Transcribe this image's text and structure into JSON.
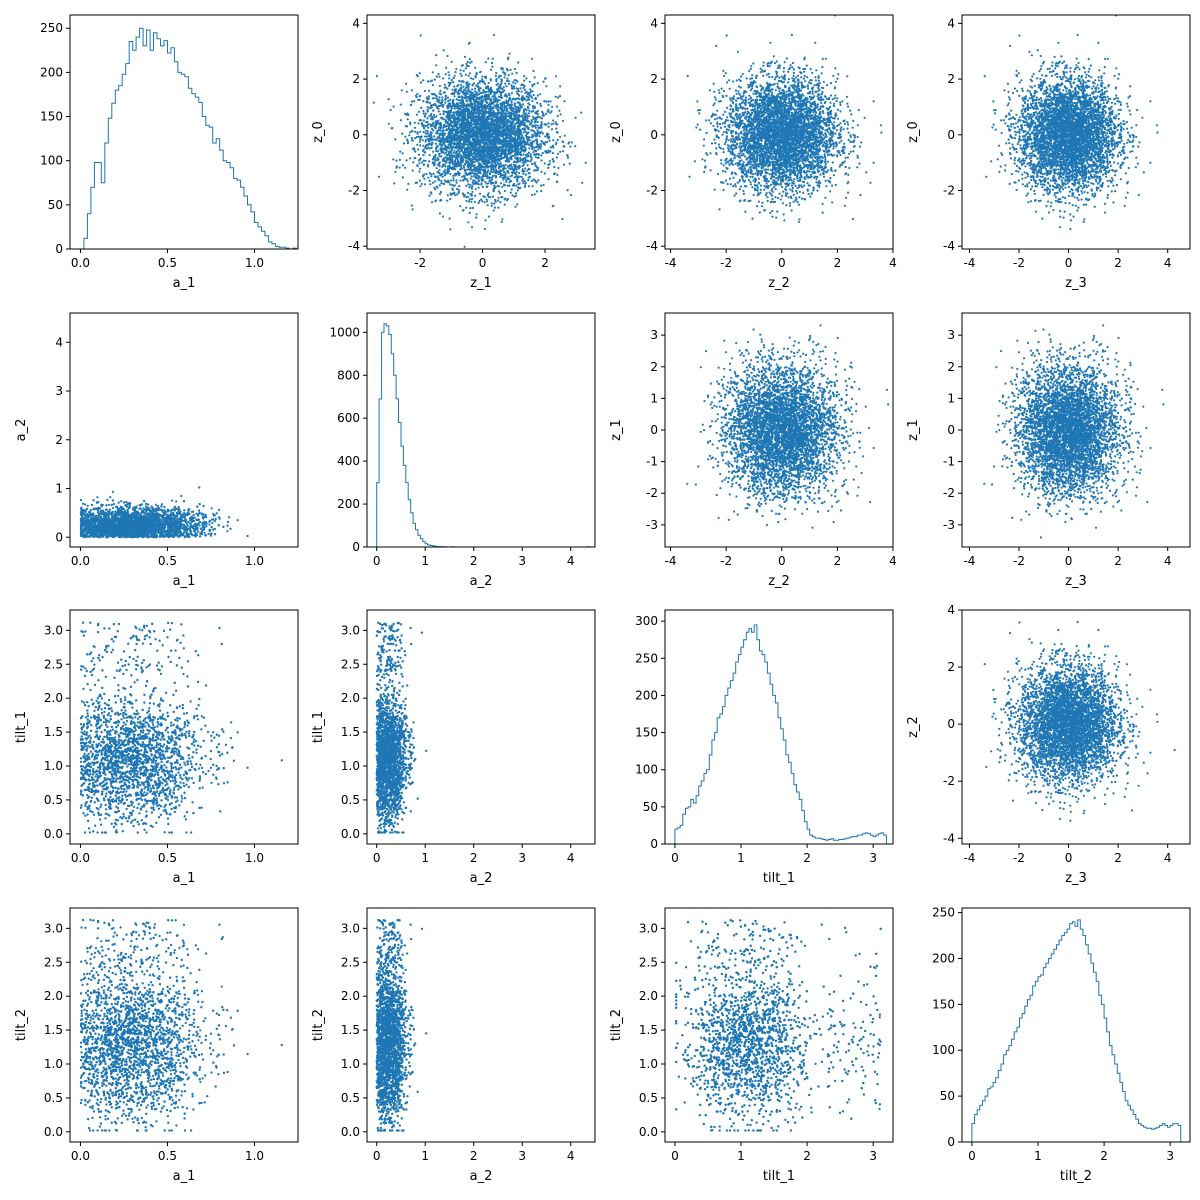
{
  "colors": {
    "series": "#1f77b4",
    "axis": "#000000",
    "background": "#ffffff"
  },
  "chart_data": [
    {
      "type": "histogram",
      "row": 0,
      "col": 0,
      "xlabel": "a_1",
      "ylabel": "",
      "xlim": [
        -0.06,
        1.25
      ],
      "ylim": [
        0,
        265
      ],
      "xticks": [
        0.0,
        0.5,
        1.0
      ],
      "yticks": [
        0,
        50,
        100,
        150,
        200,
        250
      ],
      "bins": {
        "start": 0.0,
        "width": 0.02,
        "counts": [
          0,
          12,
          40,
          70,
          98,
          98,
          75,
          120,
          148,
          165,
          180,
          185,
          198,
          210,
          235,
          225,
          240,
          250,
          230,
          248,
          225,
          245,
          238,
          230,
          236,
          222,
          228,
          212,
          200,
          198,
          195,
          182,
          176,
          172,
          166,
          150,
          140,
          138,
          120,
          125,
          112,
          100,
          98,
          92,
          80,
          78,
          70,
          60,
          50,
          42,
          30,
          25,
          20,
          15,
          8,
          6,
          3,
          2,
          2,
          1,
          0,
          1
        ]
      }
    },
    {
      "type": "scatter",
      "row": 0,
      "col": 1,
      "xlabel": "z_1",
      "ylabel": "z_0",
      "xlim": [
        -3.7,
        3.6
      ],
      "ylim": [
        -4.1,
        4.3
      ],
      "xticks": [
        -2,
        0,
        2
      ],
      "yticks": [
        -4,
        -2,
        0,
        2,
        4
      ],
      "cloud": {
        "cx": 0,
        "cy": 0,
        "sx": 1,
        "sy": 1,
        "n": 4500
      }
    },
    {
      "type": "scatter",
      "row": 0,
      "col": 2,
      "xlabel": "z_2",
      "ylabel": "z_0",
      "xlim": [
        -4.2,
        4.0
      ],
      "ylim": [
        -4.1,
        4.3
      ],
      "xticks": [
        -4,
        -2,
        0,
        2,
        4
      ],
      "yticks": [
        -4,
        -2,
        0,
        2,
        4
      ],
      "cloud": {
        "cx": 0,
        "cy": 0,
        "sx": 1,
        "sy": 1,
        "n": 4500
      }
    },
    {
      "type": "scatter",
      "row": 0,
      "col": 3,
      "xlabel": "z_3",
      "ylabel": "z_0",
      "xlim": [
        -4.3,
        4.9
      ],
      "ylim": [
        -4.1,
        4.3
      ],
      "xticks": [
        -4,
        -2,
        0,
        2,
        4
      ],
      "yticks": [
        -4,
        -2,
        0,
        2,
        4
      ],
      "cloud": {
        "cx": 0,
        "cy": 0,
        "sx": 1,
        "sy": 1,
        "n": 4500
      }
    },
    {
      "type": "scatter",
      "row": 1,
      "col": 0,
      "xlabel": "a_1",
      "ylabel": "a_2",
      "xlim": [
        -0.06,
        1.25
      ],
      "ylim": [
        -0.2,
        4.6
      ],
      "xticks": [
        0.0,
        0.5,
        1.0
      ],
      "yticks": [
        0,
        1,
        2,
        3,
        4
      ],
      "cloud": {
        "kind": "a1a2",
        "n": 4500
      }
    },
    {
      "type": "histogram",
      "row": 1,
      "col": 1,
      "xlabel": "a_2",
      "ylabel": "",
      "xlim": [
        -0.2,
        4.5
      ],
      "ylim": [
        0,
        1090
      ],
      "xticks": [
        0,
        1,
        2,
        3,
        4
      ],
      "yticks": [
        0,
        200,
        400,
        600,
        800,
        1000
      ],
      "bins": {
        "start": 0.0,
        "width": 0.05,
        "counts": [
          300,
          690,
          1000,
          1040,
          1030,
          990,
          900,
          800,
          690,
          580,
          470,
          380,
          300,
          220,
          160,
          110,
          80,
          55,
          38,
          25,
          15,
          10,
          7,
          5,
          3,
          2,
          2,
          1,
          1,
          0,
          0,
          1,
          0,
          0,
          0,
          0,
          0,
          0,
          0,
          0,
          0,
          0,
          0,
          0,
          0,
          0,
          0,
          0,
          0,
          0,
          0,
          0,
          0,
          0,
          0,
          0,
          0,
          0,
          0,
          0,
          0,
          0,
          0,
          0,
          0,
          0,
          0,
          0,
          0,
          0,
          0,
          0,
          0,
          0,
          0,
          0,
          0,
          0,
          0,
          0,
          0,
          0,
          0,
          0,
          0,
          0,
          0,
          1
        ]
      }
    },
    {
      "type": "scatter",
      "row": 1,
      "col": 2,
      "xlabel": "z_2",
      "ylabel": "z_1",
      "xlim": [
        -4.2,
        4.0
      ],
      "ylim": [
        -3.7,
        3.7
      ],
      "xticks": [
        -4,
        -2,
        0,
        2,
        4
      ],
      "yticks": [
        -3,
        -2,
        -1,
        0,
        1,
        2,
        3
      ],
      "cloud": {
        "cx": 0,
        "cy": 0,
        "sx": 1,
        "sy": 1,
        "n": 4500
      }
    },
    {
      "type": "scatter",
      "row": 1,
      "col": 3,
      "xlabel": "z_3",
      "ylabel": "z_1",
      "xlim": [
        -4.3,
        4.9
      ],
      "ylim": [
        -3.7,
        3.7
      ],
      "xticks": [
        -4,
        -2,
        0,
        2,
        4
      ],
      "yticks": [
        -3,
        -2,
        -1,
        0,
        1,
        2,
        3
      ],
      "cloud": {
        "cx": 0,
        "cy": 0,
        "sx": 1,
        "sy": 1,
        "n": 4500
      }
    },
    {
      "type": "scatter",
      "row": 2,
      "col": 0,
      "xlabel": "a_1",
      "ylabel": "tilt_1",
      "xlim": [
        -0.06,
        1.25
      ],
      "ylim": [
        -0.15,
        3.3
      ],
      "xticks": [
        0.0,
        0.5,
        1.0
      ],
      "yticks": [
        0.0,
        0.5,
        1.0,
        1.5,
        2.0,
        2.5,
        3.0
      ],
      "cloud": {
        "kind": "a1tilt1",
        "n": 4500
      }
    },
    {
      "type": "scatter",
      "row": 2,
      "col": 1,
      "xlabel": "a_2",
      "ylabel": "tilt_1",
      "xlim": [
        -0.2,
        4.5
      ],
      "ylim": [
        -0.15,
        3.3
      ],
      "xticks": [
        0,
        1,
        2,
        3,
        4
      ],
      "yticks": [
        0.0,
        0.5,
        1.0,
        1.5,
        2.0,
        2.5,
        3.0
      ],
      "cloud": {
        "kind": "a2tilt1",
        "n": 4500
      }
    },
    {
      "type": "histogram",
      "row": 2,
      "col": 2,
      "xlabel": "tilt_1",
      "ylabel": "",
      "xlim": [
        -0.15,
        3.3
      ],
      "ylim": [
        0,
        315
      ],
      "xticks": [
        0,
        1,
        2,
        3
      ],
      "yticks": [
        0,
        50,
        100,
        150,
        200,
        250,
        300
      ],
      "bins": {
        "start": 0.0,
        "width": 0.04,
        "counts": [
          20,
          22,
          25,
          40,
          48,
          50,
          60,
          55,
          65,
          78,
          85,
          95,
          100,
          120,
          140,
          150,
          170,
          175,
          185,
          200,
          210,
          220,
          230,
          245,
          255,
          265,
          275,
          285,
          290,
          285,
          295,
          275,
          260,
          255,
          245,
          230,
          215,
          200,
          190,
          170,
          155,
          140,
          120,
          110,
          95,
          80,
          70,
          60,
          45,
          30,
          20,
          12,
          10,
          8,
          8,
          7,
          6,
          5,
          6,
          7,
          5,
          5,
          6,
          6,
          7,
          8,
          9,
          10,
          10,
          12,
          12,
          14,
          15,
          14,
          12,
          10,
          12,
          14,
          15,
          12
        ]
      }
    },
    {
      "type": "scatter",
      "row": 2,
      "col": 3,
      "xlabel": "z_3",
      "ylabel": "z_2",
      "xlim": [
        -4.3,
        4.9
      ],
      "ylim": [
        -4.2,
        4.0
      ],
      "xticks": [
        -4,
        -2,
        0,
        2,
        4
      ],
      "yticks": [
        -4,
        -2,
        0,
        2,
        4
      ],
      "cloud": {
        "cx": 0,
        "cy": 0,
        "sx": 1,
        "sy": 1,
        "n": 4500
      }
    },
    {
      "type": "scatter",
      "row": 3,
      "col": 0,
      "xlabel": "a_1",
      "ylabel": "tilt_2",
      "xlim": [
        -0.06,
        1.25
      ],
      "ylim": [
        -0.15,
        3.3
      ],
      "xticks": [
        0.0,
        0.5,
        1.0
      ],
      "yticks": [
        0.0,
        0.5,
        1.0,
        1.5,
        2.0,
        2.5,
        3.0
      ],
      "cloud": {
        "kind": "a1tilt2",
        "n": 4500
      }
    },
    {
      "type": "scatter",
      "row": 3,
      "col": 1,
      "xlabel": "a_2",
      "ylabel": "tilt_2",
      "xlim": [
        -0.2,
        4.5
      ],
      "ylim": [
        -0.15,
        3.3
      ],
      "xticks": [
        0,
        1,
        2,
        3,
        4
      ],
      "yticks": [
        0.0,
        0.5,
        1.0,
        1.5,
        2.0,
        2.5,
        3.0
      ],
      "cloud": {
        "kind": "a2tilt2",
        "n": 4500
      }
    },
    {
      "type": "scatter",
      "row": 3,
      "col": 2,
      "xlabel": "tilt_1",
      "ylabel": "tilt_2",
      "xlim": [
        -0.15,
        3.3
      ],
      "ylim": [
        -0.15,
        3.3
      ],
      "xticks": [
        0,
        1,
        2,
        3
      ],
      "yticks": [
        0.0,
        0.5,
        1.0,
        1.5,
        2.0,
        2.5,
        3.0
      ],
      "cloud": {
        "kind": "tilt1tilt2",
        "n": 4500
      }
    },
    {
      "type": "histogram",
      "row": 3,
      "col": 3,
      "xlabel": "tilt_2",
      "ylabel": "",
      "xlim": [
        -0.15,
        3.3
      ],
      "ylim": [
        0,
        255
      ],
      "xticks": [
        0,
        1,
        2,
        3
      ],
      "yticks": [
        0,
        50,
        100,
        150,
        200,
        250
      ],
      "bins": {
        "start": 0.0,
        "width": 0.04,
        "counts": [
          20,
          30,
          35,
          40,
          45,
          50,
          58,
          60,
          65,
          70,
          78,
          85,
          95,
          100,
          105,
          112,
          120,
          125,
          135,
          140,
          148,
          155,
          160,
          170,
          175,
          180,
          182,
          190,
          195,
          200,
          205,
          210,
          215,
          220,
          225,
          228,
          232,
          238,
          240,
          235,
          242,
          232,
          225,
          215,
          205,
          195,
          185,
          175,
          160,
          150,
          135,
          120,
          105,
          95,
          85,
          75,
          65,
          55,
          45,
          40,
          35,
          30,
          25,
          20,
          18,
          16,
          15,
          15,
          14,
          15,
          16,
          18,
          20,
          18,
          16,
          18,
          20,
          20,
          18
        ]
      }
    }
  ]
}
